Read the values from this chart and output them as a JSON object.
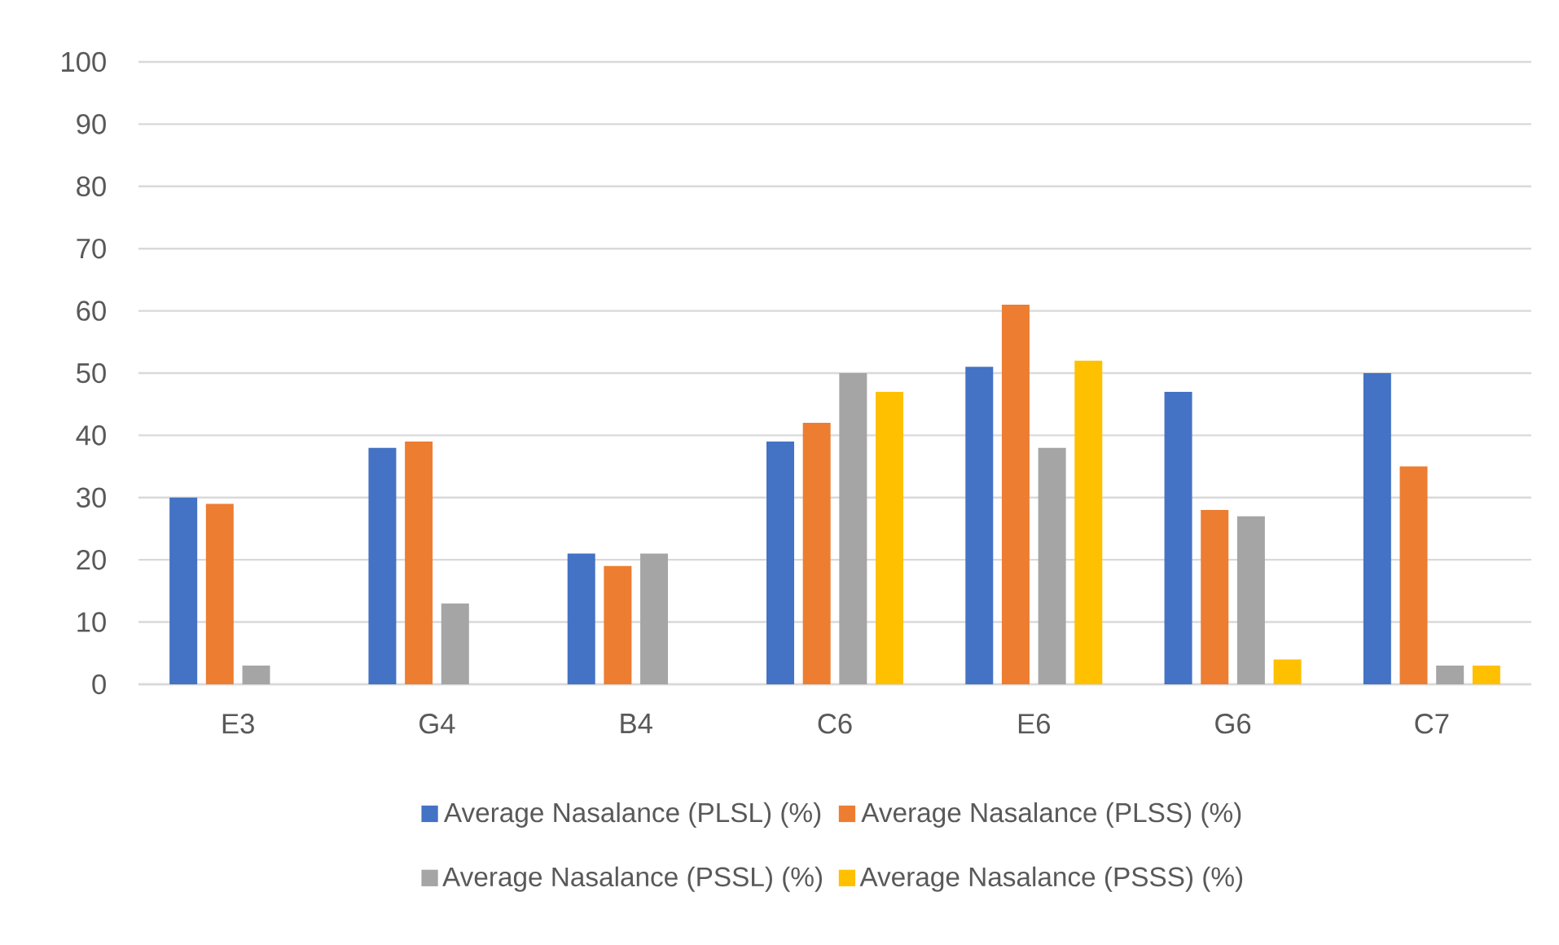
{
  "chart_data": {
    "type": "bar",
    "categories": [
      "E3",
      "G4",
      "B4",
      "C6",
      "E6",
      "G6",
      "C7"
    ],
    "series": [
      {
        "name": "Average Nasalance (PLSL) (%)",
        "color": "#4472c4",
        "values": [
          30,
          38,
          21,
          39,
          51,
          47,
          50
        ]
      },
      {
        "name": "Average Nasalance (PLSS) (%)",
        "color": "#ed7d31",
        "values": [
          29,
          39,
          19,
          42,
          61,
          28,
          35
        ]
      },
      {
        "name": "Average Nasalance (PSSL) (%)",
        "color": "#a5a5a5",
        "values": [
          3,
          13,
          21,
          50,
          38,
          27,
          3
        ]
      },
      {
        "name": "Average Nasalance (PSSS) (%)",
        "color": "#ffc000",
        "values": [
          null,
          null,
          null,
          47,
          52,
          4,
          3
        ]
      }
    ],
    "ylim": [
      0,
      100
    ],
    "yticks": [
      0,
      10,
      20,
      30,
      40,
      50,
      60,
      70,
      80,
      90,
      100
    ],
    "grid": "y",
    "legend": "bottom"
  }
}
